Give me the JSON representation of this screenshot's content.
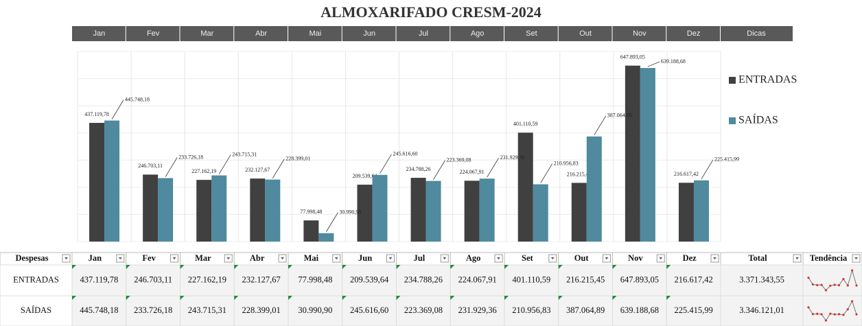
{
  "chart_data": {
    "type": "bar",
    "title": "ALMOXARIFADO CRESM-2024",
    "categories": [
      "Jan",
      "Fev",
      "Mar",
      "Abr",
      "Mai",
      "Jun",
      "Jul",
      "Ago",
      "Set",
      "Out",
      "Nov",
      "Dez"
    ],
    "series": [
      {
        "name": "ENTRADAS",
        "color": "#404040",
        "values": [
          437119.78,
          246703.11,
          227162.19,
          232127.67,
          77998.48,
          209539.64,
          234788.26,
          224067.91,
          401110.59,
          216215.45,
          647893.05,
          216617.42
        ],
        "value_labels": [
          "437.119,78",
          "246.703,11",
          "227.162,19",
          "232.127,67",
          "77.998,48",
          "209.539,64",
          "234.788,26",
          "224.067,91",
          "401.110,59",
          "216.215,45",
          "647.893,05",
          "216.617,42"
        ]
      },
      {
        "name": "SAÍDAS",
        "color": "#4f8a9e",
        "values": [
          445748.18,
          233726.18,
          243715.31,
          228399.01,
          30990.9,
          245616.6,
          223369.08,
          231929.36,
          210956.83,
          387064.89,
          639188.68,
          225415.99
        ],
        "value_labels": [
          "445.748,18",
          "233.726,18",
          "243.715,31",
          "228.399,01",
          "30.990,90",
          "245.616,60",
          "223.369,08",
          "231.929,36",
          "210.956,83",
          "387.064,89",
          "639.188,68",
          "225.415,99"
        ]
      }
    ],
    "ylim": [
      0,
      700000
    ],
    "yticks": [
      0,
      100000,
      200000,
      300000,
      400000,
      500000,
      600000,
      700000
    ],
    "grid": true,
    "legend": "right"
  },
  "extra_button": "Dicas",
  "table": {
    "first_header": "Despesas",
    "total_header": "Total",
    "trend_header": "Tendência",
    "totals": [
      "3.371.343,55",
      "3.346.121,01"
    ]
  }
}
